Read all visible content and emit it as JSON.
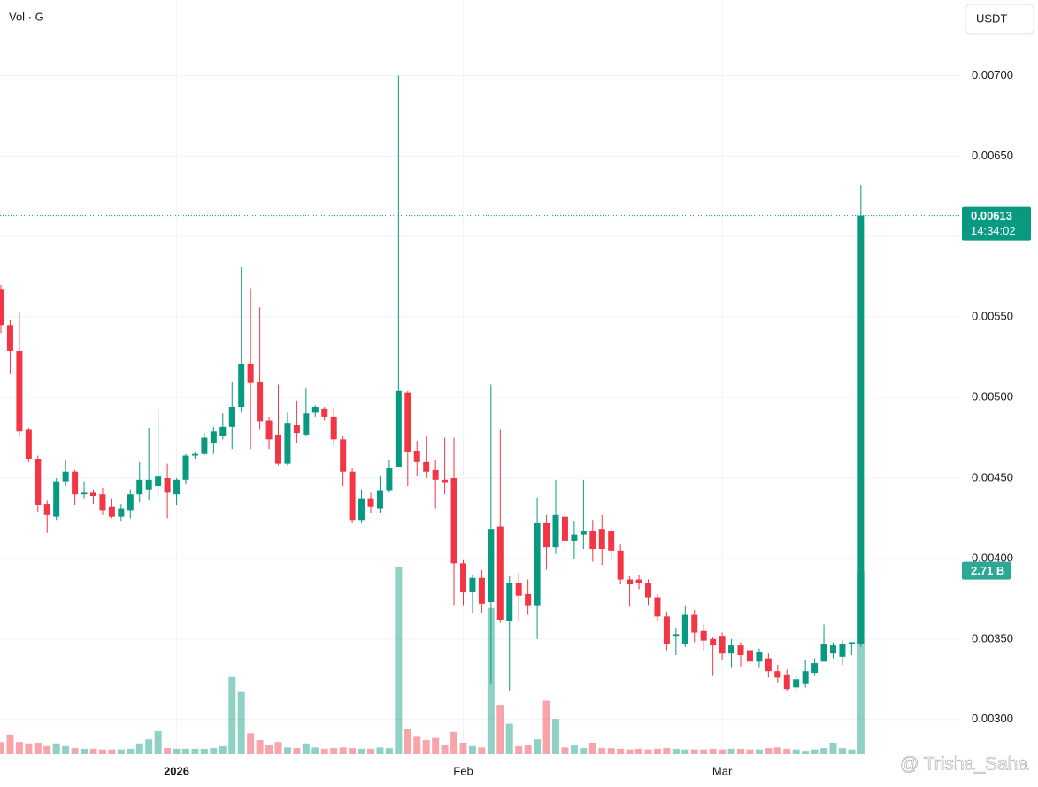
{
  "chart_data": {
    "type": "candlestick",
    "volume_title": "Vol · G",
    "currency": "USDT",
    "countdown": "14:34:02",
    "volume_label": "2.71 B",
    "watermark": "@ Trisha_Saha",
    "up_color": "#089981",
    "down_color": "#f23645",
    "ylim": [
      0.00274,
      0.00747
    ],
    "yticks": [
      {
        "value": 0.003,
        "label": "0.00300"
      },
      {
        "value": 0.0035,
        "label": "0.00350"
      },
      {
        "value": 0.004,
        "label": "0.00400"
      },
      {
        "value": 0.0045,
        "label": "0.00450"
      },
      {
        "value": 0.005,
        "label": "0.00500"
      },
      {
        "value": 0.0055,
        "label": "0.00550"
      },
      {
        "value": 0.006,
        "label": "0.00600"
      },
      {
        "value": 0.0065,
        "label": "0.00650"
      },
      {
        "value": 0.007,
        "label": "0.00700"
      }
    ],
    "grid": true,
    "categories": [
      null,
      null,
      null,
      null,
      null,
      null,
      null,
      null,
      null,
      null,
      null,
      null,
      null,
      null,
      null,
      null,
      null,
      null,
      null,
      "2026",
      null,
      null,
      null,
      null,
      null,
      null,
      null,
      null,
      null,
      null,
      null,
      null,
      null,
      null,
      null,
      null,
      null,
      null,
      null,
      null,
      null,
      null,
      null,
      null,
      null,
      null,
      null,
      null,
      null,
      null,
      "Feb",
      null,
      null,
      null,
      null,
      null,
      null,
      null,
      null,
      null,
      null,
      null,
      null,
      null,
      null,
      null,
      null,
      null,
      null,
      null,
      null,
      null,
      null,
      null,
      null,
      null,
      null,
      null,
      "Mar",
      null,
      null,
      null,
      null,
      null,
      null,
      null,
      null,
      null,
      null,
      null,
      null,
      null,
      null,
      null
    ],
    "open": [
      0.00567,
      0.00545,
      0.00529,
      0.0048,
      0.00462,
      0.00434,
      0.00426,
      0.00448,
      0.00454,
      0.0044,
      0.00441,
      0.0044,
      0.00432,
      0.00426,
      0.0043,
      0.0044,
      0.00443,
      0.00445,
      0.0045,
      0.0044,
      0.00449,
      0.00464,
      0.00465,
      0.00472,
      0.00476,
      0.00482,
      0.00494,
      0.00521,
      0.0051,
      0.00486,
      0.00477,
      0.00459,
      0.00483,
      0.00477,
      0.00491,
      0.00493,
      0.00488,
      0.00474,
      0.00454,
      0.00424,
      0.00437,
      0.00431,
      0.00442,
      0.00457,
      0.00503,
      0.00467,
      0.0046,
      0.00455,
      0.00449,
      0.0045,
      0.00397,
      0.00379,
      0.00388,
      0.00373,
      0.0042,
      0.00361,
      0.00385,
      0.00378,
      0.00371,
      0.00422,
      0.00407,
      0.00426,
      0.00411,
      0.00415,
      0.00417,
      0.00418,
      0.00417,
      0.00405,
      0.00387,
      0.00387,
      0.00385,
      0.00376,
      0.00364,
      0.00352,
      0.00347,
      0.00365,
      0.00355,
      0.0035,
      0.00352,
      0.00341,
      0.00346,
      0.00343,
      0.00336,
      0.00338,
      0.0033,
      0.00328,
      0.0032,
      0.00322,
      0.00329,
      0.00336,
      0.00341,
      0.00339,
      0.00347,
      0.00347
    ],
    "high": [
      0.0057,
      0.00548,
      0.00553,
      0.00481,
      0.00464,
      0.00436,
      0.0045,
      0.00461,
      0.00455,
      0.00448,
      0.00443,
      0.00444,
      0.00437,
      0.00434,
      0.00443,
      0.0046,
      0.00481,
      0.00493,
      0.00459,
      0.0045,
      0.00465,
      0.00466,
      0.00478,
      0.00482,
      0.0049,
      0.0051,
      0.00581,
      0.00568,
      0.00556,
      0.00488,
      0.00508,
      0.00491,
      0.00498,
      0.00506,
      0.00495,
      0.00494,
      0.00494,
      0.00476,
      0.00456,
      0.00443,
      0.00441,
      0.00451,
      0.00461,
      0.007,
      0.00504,
      0.00473,
      0.00476,
      0.00461,
      0.00475,
      0.00475,
      0.00399,
      0.0039,
      0.00393,
      0.00508,
      0.0048,
      0.00389,
      0.00391,
      0.00387,
      0.00438,
      0.00427,
      0.00449,
      0.00434,
      0.00423,
      0.00449,
      0.00424,
      0.00427,
      0.00418,
      0.00409,
      0.00389,
      0.0039,
      0.00387,
      0.00378,
      0.00367,
      0.00357,
      0.00371,
      0.00368,
      0.00359,
      0.00351,
      0.00354,
      0.0035,
      0.00348,
      0.00344,
      0.00344,
      0.00341,
      0.00334,
      0.00331,
      0.00328,
      0.00337,
      0.00338,
      0.00359,
      0.00348,
      0.00349,
      0.00348,
      0.00632
    ],
    "low": [
      0.0054,
      0.00515,
      0.00476,
      0.0046,
      0.00429,
      0.00416,
      0.00424,
      0.00445,
      0.00433,
      0.00437,
      0.00434,
      0.00427,
      0.00425,
      0.00423,
      0.00425,
      0.00435,
      0.00436,
      0.0044,
      0.00425,
      0.00433,
      0.00446,
      0.00462,
      0.00464,
      0.00465,
      0.00474,
      0.00468,
      0.00491,
      0.00468,
      0.0048,
      0.00468,
      0.00458,
      0.00458,
      0.00472,
      0.00476,
      0.00488,
      0.00486,
      0.0047,
      0.00445,
      0.00422,
      0.00422,
      0.00428,
      0.00428,
      0.00441,
      0.00457,
      0.00445,
      0.00451,
      0.0045,
      0.00431,
      0.0044,
      0.00371,
      0.00371,
      0.00366,
      0.00366,
      0.00322,
      0.0036,
      0.00318,
      0.00361,
      0.00365,
      0.0035,
      0.00393,
      0.00403,
      0.00404,
      0.004,
      0.00406,
      0.00398,
      0.00396,
      0.004,
      0.00384,
      0.0037,
      0.00381,
      0.00371,
      0.00361,
      0.00343,
      0.0034,
      0.00345,
      0.00348,
      0.00343,
      0.00327,
      0.00337,
      0.00332,
      0.00333,
      0.00331,
      0.00332,
      0.00326,
      0.00323,
      0.00318,
      0.00318,
      0.0032,
      0.00327,
      0.00336,
      0.00338,
      0.00334,
      0.0034,
      0.00345
    ],
    "close": [
      0.00545,
      0.00529,
      0.00479,
      0.00462,
      0.00433,
      0.00427,
      0.00448,
      0.00454,
      0.0044,
      0.00441,
      0.00439,
      0.0043,
      0.00426,
      0.00431,
      0.0044,
      0.00449,
      0.00449,
      0.00451,
      0.00441,
      0.00449,
      0.00464,
      0.00465,
      0.00475,
      0.00479,
      0.00482,
      0.00494,
      0.00521,
      0.00509,
      0.00485,
      0.00474,
      0.00459,
      0.00484,
      0.00478,
      0.0049,
      0.00494,
      0.00488,
      0.00474,
      0.00454,
      0.00424,
      0.00437,
      0.00432,
      0.00442,
      0.00456,
      0.00504,
      0.00466,
      0.0046,
      0.00454,
      0.00449,
      0.00447,
      0.00397,
      0.00379,
      0.00388,
      0.00372,
      0.00418,
      0.00362,
      0.00385,
      0.00377,
      0.00371,
      0.00422,
      0.00407,
      0.00427,
      0.00411,
      0.00415,
      0.00417,
      0.00406,
      0.00406,
      0.00405,
      0.00387,
      0.00384,
      0.00385,
      0.00376,
      0.00364,
      0.00347,
      0.00353,
      0.00365,
      0.00354,
      0.00349,
      0.00346,
      0.00341,
      0.00346,
      0.0034,
      0.00336,
      0.00342,
      0.0033,
      0.00326,
      0.00319,
      0.00325,
      0.0033,
      0.00335,
      0.00347,
      0.00346,
      0.00347,
      0.00348,
      0.00613
    ],
    "volumes": [
      180000000.0,
      290000000.0,
      180000000.0,
      160000000.0,
      170000000.0,
      120000000.0,
      160000000.0,
      120000000.0,
      90000000.0,
      80000000.0,
      80000000.0,
      70000000.0,
      70000000.0,
      70000000.0,
      80000000.0,
      160000000.0,
      220000000.0,
      340000000.0,
      90000000.0,
      80000000.0,
      80000000.0,
      80000000.0,
      80000000.0,
      90000000.0,
      120000000.0,
      1140000000.0,
      920000000.0,
      310000000.0,
      210000000.0,
      130000000.0,
      180000000.0,
      100000000.0,
      90000000.0,
      160000000.0,
      100000000.0,
      80000000.0,
      90000000.0,
      100000000.0,
      90000000.0,
      80000000.0,
      80000000.0,
      100000000.0,
      90000000.0,
      2770000000.0,
      370000000.0,
      270000000.0,
      210000000.0,
      240000000.0,
      140000000.0,
      330000000.0,
      170000000.0,
      120000000.0,
      100000000.0,
      2160000000.0,
      730000000.0,
      450000000.0,
      120000000.0,
      140000000.0,
      220000000.0,
      790000000.0,
      520000000.0,
      100000000.0,
      130000000.0,
      90000000.0,
      170000000.0,
      90000000.0,
      90000000.0,
      80000000.0,
      70000000.0,
      80000000.0,
      70000000.0,
      80000000.0,
      90000000.0,
      80000000.0,
      70000000.0,
      70000000.0,
      70000000.0,
      80000000.0,
      70000000.0,
      80000000.0,
      80000000.0,
      70000000.0,
      70000000.0,
      90000000.0,
      100000000.0,
      80000000.0,
      70000000.0,
      50000000.0,
      70000000.0,
      90000000.0,
      170000000.0,
      90000000.0,
      70000000.0,
      2710000000.0
    ]
  }
}
